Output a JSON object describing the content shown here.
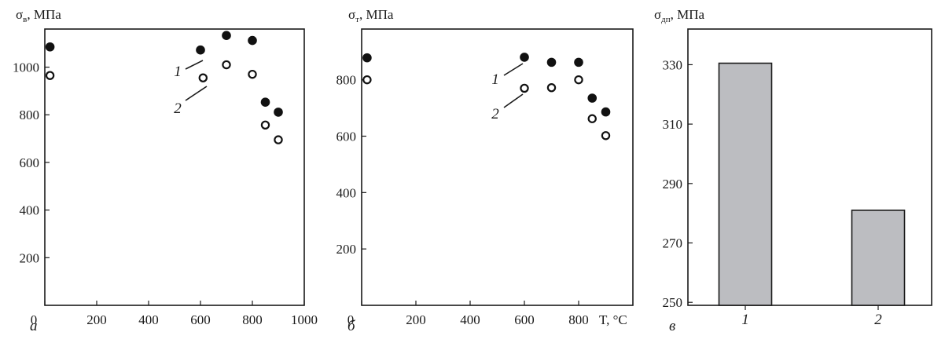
{
  "chart_data": [
    {
      "type": "scatter",
      "panel": "а",
      "ylabel_symbol": "σ",
      "ylabel_sub": "в",
      "ylabel_unit": ", МПа",
      "xlabel": "",
      "xlim": [
        0,
        1000
      ],
      "ylim": [
        0,
        1160
      ],
      "xticks": [
        0,
        200,
        400,
        600,
        800,
        1000
      ],
      "yticks": [
        200,
        400,
        600,
        800,
        1000
      ],
      "series": [
        {
          "label": "1",
          "marker": "filled",
          "points": [
            [
              20,
              1085
            ],
            [
              600,
              1072
            ],
            [
              700,
              1133
            ],
            [
              800,
              1112
            ],
            [
              850,
              853
            ],
            [
              900,
              811
            ]
          ]
        },
        {
          "label": "2",
          "marker": "open",
          "points": [
            [
              20,
              965
            ],
            [
              610,
              955
            ],
            [
              700,
              1010
            ],
            [
              800,
              970
            ],
            [
              850,
              757
            ],
            [
              900,
              695
            ]
          ]
        }
      ]
    },
    {
      "type": "scatter",
      "panel": "б",
      "ylabel_symbol": "σ",
      "ylabel_sub": "т",
      "ylabel_unit": ", МПа",
      "xlabel": "T, °C",
      "xlim": [
        0,
        1000
      ],
      "ylim": [
        0,
        980
      ],
      "xticks": [
        0,
        200,
        400,
        600,
        800
      ],
      "yticks": [
        200,
        400,
        600,
        800
      ],
      "series": [
        {
          "label": "1",
          "marker": "filled",
          "points": [
            [
              20,
              878
            ],
            [
              600,
              880
            ],
            [
              700,
              862
            ],
            [
              800,
              862
            ],
            [
              850,
              735
            ],
            [
              900,
              686
            ]
          ]
        },
        {
          "label": "2",
          "marker": "open",
          "points": [
            [
              20,
              800
            ],
            [
              600,
              770
            ],
            [
              700,
              772
            ],
            [
              800,
              800
            ],
            [
              850,
              662
            ],
            [
              900,
              602
            ]
          ]
        }
      ]
    },
    {
      "type": "bar",
      "panel": "в",
      "ylabel_symbol": "σ",
      "ylabel_sub": "дп",
      "ylabel_unit": ", МПа",
      "categories": [
        "1",
        "2"
      ],
      "values": [
        330.5,
        281
      ],
      "ylim": [
        249,
        342
      ],
      "yticks": [
        250,
        270,
        290,
        310,
        330
      ],
      "bar_color": "#bcbdc1"
    }
  ]
}
